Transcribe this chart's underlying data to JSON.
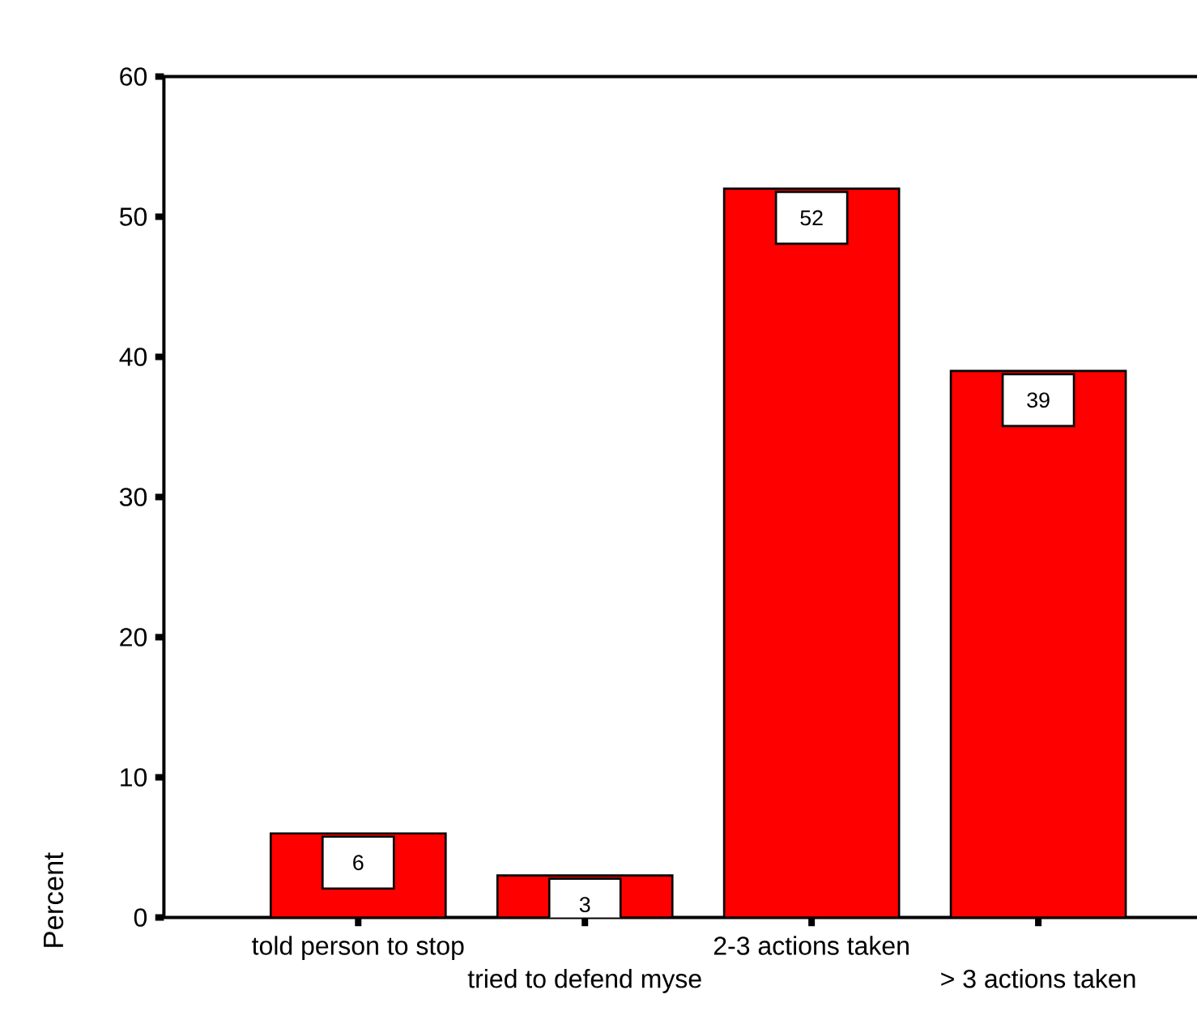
{
  "chart_data": {
    "type": "bar",
    "ylabel": "Percent",
    "categories": [
      "told person to stop",
      "tried to defend myse",
      "2-3 actions taken",
      "> 3 actions taken"
    ],
    "values": [
      6,
      3,
      52,
      39
    ],
    "color": "#ff0000",
    "data_labels": true,
    "ylim": [
      0,
      60
    ],
    "yticks": [
      0,
      10,
      20,
      30,
      40,
      50,
      60
    ],
    "grid": false
  }
}
